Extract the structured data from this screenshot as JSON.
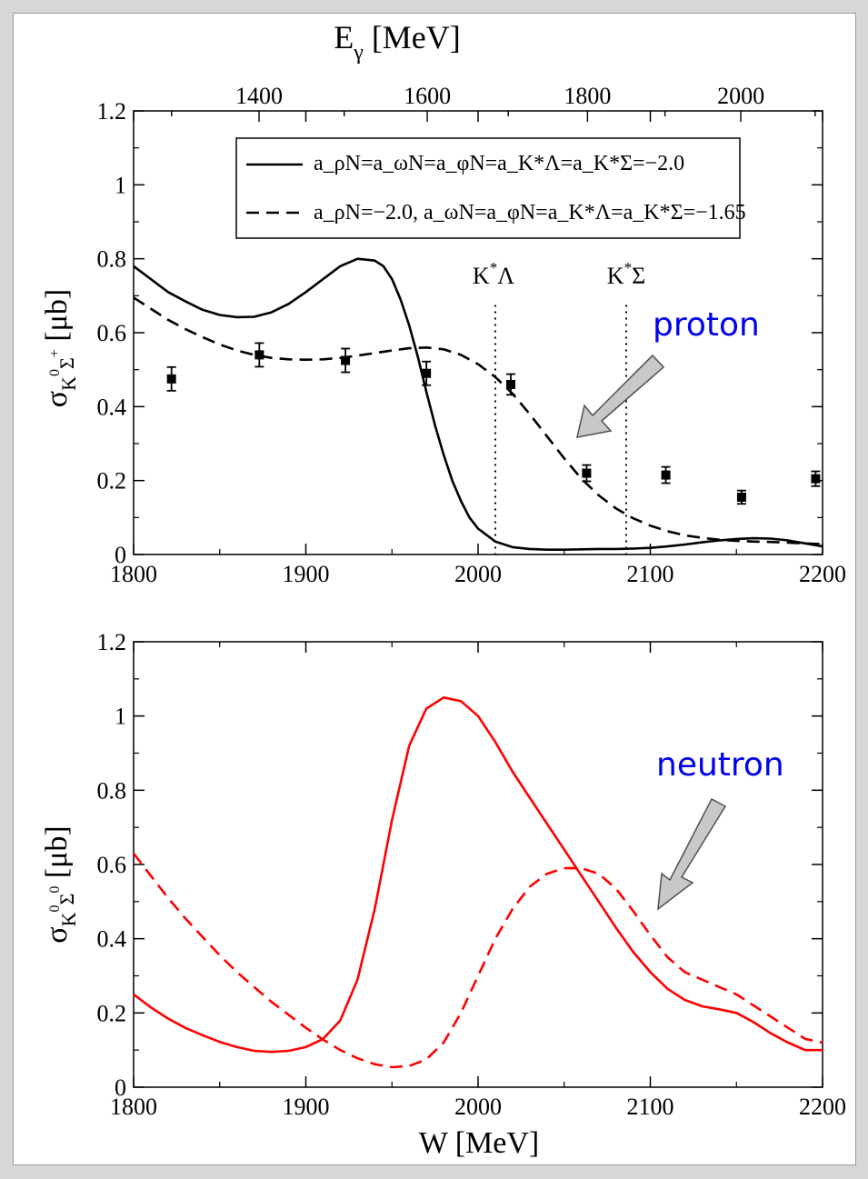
{
  "chart_data": [
    {
      "type": "line",
      "panel": "top",
      "title": "",
      "xlabel": "",
      "ylabel": "σ_{K^0Σ^+} [μb]",
      "xlim": [
        1800,
        2200
      ],
      "ylim": [
        0,
        1.2
      ],
      "x_ticks": [
        "1800",
        "1900",
        "2000",
        "2100",
        "2200"
      ],
      "y_ticks": [
        "0",
        "0.2",
        "0.4",
        "0.6",
        "0.8",
        "1",
        "1.2"
      ],
      "top_axis": {
        "label": "E_γ [MeV]",
        "ticks": [
          {
            "label": "1400",
            "value": 1400
          },
          {
            "label": "1600",
            "value": 1600
          },
          {
            "label": "1800",
            "value": 1800
          },
          {
            "label": "2000",
            "value": 2000
          }
        ]
      },
      "legend_placement": "top-center",
      "series": [
        {
          "name": "a_ρN=a_ωN=a_φN=a_K*Λ=a_K*Σ=−2.0",
          "style": "solid",
          "color": "#000000",
          "x": [
            1800,
            1810,
            1820,
            1830,
            1840,
            1850,
            1860,
            1870,
            1880,
            1890,
            1900,
            1910,
            1920,
            1930,
            1940,
            1945,
            1950,
            1955,
            1960,
            1965,
            1970,
            1975,
            1980,
            1985,
            1990,
            1995,
            2000,
            2010,
            2020,
            2030,
            2040,
            2050,
            2060,
            2070,
            2080,
            2090,
            2100,
            2110,
            2120,
            2130,
            2140,
            2150,
            2160,
            2170,
            2180,
            2190,
            2200
          ],
          "y": [
            0.78,
            0.745,
            0.71,
            0.685,
            0.662,
            0.648,
            0.642,
            0.643,
            0.655,
            0.678,
            0.71,
            0.745,
            0.78,
            0.8,
            0.795,
            0.78,
            0.745,
            0.69,
            0.62,
            0.535,
            0.44,
            0.35,
            0.27,
            0.2,
            0.145,
            0.1,
            0.07,
            0.035,
            0.02,
            0.015,
            0.013,
            0.013,
            0.014,
            0.015,
            0.015,
            0.016,
            0.018,
            0.022,
            0.027,
            0.033,
            0.038,
            0.042,
            0.044,
            0.043,
            0.038,
            0.03,
            0.022
          ]
        },
        {
          "name": "a_ρN=−2.0,   a_ωN=a_φN=a_K*Λ=a_K*Σ=−1.65",
          "style": "dashed",
          "color": "#000000",
          "x": [
            1800,
            1810,
            1820,
            1830,
            1840,
            1850,
            1860,
            1870,
            1880,
            1890,
            1900,
            1910,
            1920,
            1930,
            1940,
            1950,
            1960,
            1970,
            1980,
            1990,
            2000,
            2010,
            2020,
            2030,
            2040,
            2050,
            2060,
            2070,
            2080,
            2090,
            2100,
            2110,
            2120,
            2130,
            2140,
            2150,
            2160,
            2170,
            2180,
            2190,
            2200
          ],
          "y": [
            0.695,
            0.665,
            0.635,
            0.61,
            0.588,
            0.568,
            0.552,
            0.54,
            0.532,
            0.528,
            0.527,
            0.528,
            0.532,
            0.538,
            0.545,
            0.552,
            0.558,
            0.56,
            0.555,
            0.54,
            0.515,
            0.48,
            0.435,
            0.38,
            0.32,
            0.26,
            0.205,
            0.16,
            0.125,
            0.098,
            0.078,
            0.063,
            0.052,
            0.045,
            0.04,
            0.037,
            0.035,
            0.034,
            0.032,
            0.03,
            0.028
          ]
        },
        {
          "name": "",
          "style": "markers",
          "color": "#000000",
          "x": [
            1822,
            1873,
            1923,
            1970,
            2019,
            2063,
            2109,
            2153,
            2196
          ],
          "y": [
            0.475,
            0.54,
            0.525,
            0.49,
            0.46,
            0.22,
            0.215,
            0.155,
            0.205
          ],
          "err": [
            0.032,
            0.032,
            0.032,
            0.032,
            0.028,
            0.022,
            0.022,
            0.018,
            0.02
          ]
        }
      ],
      "annotations": [
        {
          "text": "K*Λ",
          "x": 2010,
          "style": "dotted vertical line"
        },
        {
          "text": "K*Σ",
          "x": 2086,
          "style": "dotted vertical line"
        },
        {
          "text": "proton",
          "color": "#0000ee"
        }
      ]
    },
    {
      "type": "line",
      "panel": "bottom",
      "title": "",
      "xlabel": "W [MeV]",
      "ylabel": "σ_{K^0Σ^0} [μb]",
      "xlim": [
        1800,
        2200
      ],
      "ylim": [
        0,
        1.2
      ],
      "x_ticks": [
        "1800",
        "1900",
        "2000",
        "2100",
        "2200"
      ],
      "y_ticks": [
        "0",
        "0.2",
        "0.4",
        "0.6",
        "0.8",
        "1",
        "1.2"
      ],
      "series": [
        {
          "name": "",
          "style": "solid",
          "color": "#ff0000",
          "x": [
            1800,
            1810,
            1820,
            1830,
            1840,
            1850,
            1860,
            1870,
            1880,
            1890,
            1900,
            1910,
            1920,
            1930,
            1940,
            1950,
            1960,
            1970,
            1980,
            1990,
            2000,
            2010,
            2020,
            2030,
            2040,
            2050,
            2060,
            2070,
            2080,
            2090,
            2100,
            2110,
            2120,
            2130,
            2140,
            2150,
            2160,
            2170,
            2180,
            2190,
            2200
          ],
          "y": [
            0.25,
            0.215,
            0.185,
            0.16,
            0.14,
            0.122,
            0.108,
            0.098,
            0.095,
            0.098,
            0.108,
            0.13,
            0.18,
            0.29,
            0.48,
            0.72,
            0.92,
            1.02,
            1.05,
            1.04,
            1.0,
            0.93,
            0.85,
            0.78,
            0.71,
            0.64,
            0.57,
            0.5,
            0.43,
            0.365,
            0.31,
            0.265,
            0.235,
            0.218,
            0.21,
            0.2,
            0.175,
            0.145,
            0.12,
            0.1,
            0.1
          ]
        },
        {
          "name": "",
          "style": "dashed",
          "color": "#ff0000",
          "x": [
            1800,
            1810,
            1820,
            1830,
            1840,
            1850,
            1860,
            1870,
            1880,
            1890,
            1900,
            1910,
            1920,
            1930,
            1940,
            1950,
            1960,
            1970,
            1980,
            1990,
            2000,
            2010,
            2020,
            2030,
            2040,
            2050,
            2060,
            2070,
            2080,
            2090,
            2100,
            2110,
            2120,
            2130,
            2140,
            2150,
            2160,
            2170,
            2180,
            2190,
            2200
          ],
          "y": [
            0.63,
            0.57,
            0.51,
            0.455,
            0.405,
            0.355,
            0.31,
            0.27,
            0.23,
            0.195,
            0.16,
            0.128,
            0.1,
            0.078,
            0.062,
            0.054,
            0.057,
            0.075,
            0.12,
            0.2,
            0.3,
            0.4,
            0.48,
            0.54,
            0.575,
            0.59,
            0.59,
            0.575,
            0.535,
            0.475,
            0.41,
            0.35,
            0.31,
            0.29,
            0.27,
            0.25,
            0.22,
            0.19,
            0.16,
            0.13,
            0.12
          ]
        }
      ],
      "annotations": [
        {
          "text": "neutron",
          "color": "#0000ee"
        }
      ]
    }
  ],
  "legend": {
    "solid_prefix": "a",
    "dashed_prefix": "a"
  },
  "labels": {
    "top_axis_label": "E",
    "top_axis_sub": "γ",
    "top_axis_unit": " [MeV]",
    "y_top_sigma": "σ",
    "y_top_sub": "K",
    "y_top_sup1": "0",
    "y_top_sub2": "Σ",
    "y_top_sup2": "+",
    "y_top_unit": " [μb]",
    "y_bot_sigma": "σ",
    "y_bot_sub": "K",
    "y_bot_sup1": "0",
    "y_bot_sub2": "Σ",
    "y_bot_sup2": "0",
    "y_bot_unit": " [μb]",
    "x_label": "W [MeV]",
    "klambda_k": "K",
    "klambda_star": "*",
    "klambda_l": "Λ",
    "ksigma_k": "K",
    "ksigma_star": "*",
    "ksigma_s": "Σ",
    "proton": "proton",
    "neutron": "neutron"
  }
}
